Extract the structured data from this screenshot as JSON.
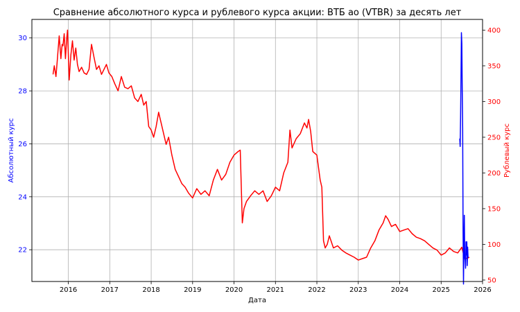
{
  "chart_data": {
    "type": "line",
    "title": "Сравнение абсолютного курса и рублевого курса акции: ВТБ ао (VTBR) за десять лет",
    "xlabel": "Дата",
    "ylabel_left": "Абсолютный курс",
    "ylabel_right": "Рублевый курс",
    "xlim": [
      2015.12,
      2026.0
    ],
    "ylim_left": [
      20.8,
      30.7
    ],
    "ylim_right": [
      48,
      415
    ],
    "x_ticks": [
      "2016",
      "2017",
      "2018",
      "2019",
      "2020",
      "2021",
      "2022",
      "2023",
      "2024",
      "2025",
      "2026"
    ],
    "y_left_ticks": [
      "22",
      "24",
      "26",
      "28",
      "30"
    ],
    "y_right_ticks": [
      "50",
      "100",
      "150",
      "200",
      "250",
      "300",
      "350",
      "400"
    ],
    "grid": true,
    "colors": {
      "left_axis": "#0000ff",
      "right_axis": "#ff0000"
    },
    "series": [
      {
        "axis": "right",
        "color": "#ff0000",
        "x": [
          2015.63,
          2015.66,
          2015.7,
          2015.73,
          2015.75,
          2015.78,
          2015.82,
          2015.85,
          2015.87,
          2015.9,
          2015.93,
          2015.96,
          2015.98,
          2016.02,
          2016.06,
          2016.1,
          2016.14,
          2016.18,
          2016.22,
          2016.26,
          2016.32,
          2016.38,
          2016.44,
          2016.5,
          2016.56,
          2016.62,
          2016.68,
          2016.74,
          2016.8,
          2016.86,
          2016.92,
          2016.98,
          2017.05,
          2017.12,
          2017.2,
          2017.28,
          2017.36,
          2017.44,
          2017.52,
          2017.6,
          2017.68,
          2017.76,
          2017.82,
          2017.88,
          2017.94,
          2018.0,
          2018.06,
          2018.12,
          2018.18,
          2018.24,
          2018.3,
          2018.36,
          2018.42,
          2018.5,
          2018.58,
          2018.66,
          2018.74,
          2018.82,
          2018.9,
          2019.0,
          2019.1,
          2019.2,
          2019.3,
          2019.4,
          2019.5,
          2019.6,
          2019.7,
          2019.8,
          2019.9,
          2020.0,
          2020.1,
          2020.15,
          2020.2,
          2020.24,
          2020.3,
          2020.4,
          2020.5,
          2020.6,
          2020.7,
          2020.8,
          2020.9,
          2021.0,
          2021.1,
          2021.2,
          2021.3,
          2021.35,
          2021.4,
          2021.5,
          2021.6,
          2021.7,
          2021.76,
          2021.8,
          2021.85,
          2021.9,
          2022.0,
          2022.08,
          2022.12,
          2022.16,
          2022.2,
          2022.25,
          2022.3,
          2022.4,
          2022.5,
          2022.6,
          2022.7,
          2022.8,
          2022.9,
          2023.0,
          2023.1,
          2023.2,
          2023.3,
          2023.4,
          2023.5,
          2023.6,
          2023.66,
          2023.72,
          2023.8,
          2023.9,
          2024.0,
          2024.1,
          2024.2,
          2024.3,
          2024.4,
          2024.5,
          2024.6,
          2024.7,
          2024.8,
          2024.9,
          2025.0,
          2025.1,
          2025.2,
          2025.3,
          2025.4,
          2025.5,
          2025.56,
          2025.62,
          2025.68
        ],
        "y": [
          338,
          350,
          335,
          355,
          370,
          392,
          360,
          380,
          378,
          395,
          360,
          388,
          400,
          330,
          365,
          385,
          358,
          375,
          352,
          342,
          348,
          340,
          338,
          345,
          380,
          362,
          345,
          350,
          338,
          345,
          352,
          340,
          335,
          325,
          315,
          335,
          320,
          318,
          322,
          305,
          300,
          310,
          295,
          300,
          265,
          260,
          250,
          265,
          285,
          270,
          255,
          240,
          250,
          225,
          205,
          195,
          185,
          180,
          172,
          165,
          178,
          170,
          175,
          168,
          190,
          205,
          190,
          198,
          215,
          225,
          230,
          232,
          130,
          150,
          160,
          168,
          175,
          170,
          175,
          160,
          168,
          180,
          175,
          200,
          215,
          260,
          235,
          248,
          255,
          270,
          263,
          275,
          258,
          230,
          225,
          190,
          180,
          105,
          95,
          100,
          112,
          95,
          98,
          92,
          88,
          85,
          82,
          78,
          80,
          82,
          95,
          105,
          120,
          130,
          140,
          135,
          125,
          128,
          118,
          120,
          122,
          115,
          110,
          108,
          105,
          100,
          95,
          92,
          85,
          88,
          95,
          90,
          88,
          96,
          82,
          80,
          82
        ]
      },
      {
        "axis": "left",
        "color": "#0000ff",
        "x": [
          2025.45,
          2025.46,
          2025.47,
          2025.48,
          2025.49,
          2025.5,
          2025.51,
          2025.52,
          2025.53,
          2025.54,
          2025.55,
          2025.56,
          2025.57,
          2025.58,
          2025.59,
          2025.6,
          2025.61,
          2025.62,
          2025.63,
          2025.64,
          2025.65
        ],
        "y": [
          26.2,
          25.9,
          27.0,
          28.5,
          30.2,
          29.8,
          28.0,
          26.6,
          22.7,
          20.7,
          22.2,
          23.3,
          21.7,
          21.6,
          21.3,
          22.3,
          21.8,
          22.3,
          21.4,
          22.1,
          21.7
        ]
      }
    ]
  }
}
